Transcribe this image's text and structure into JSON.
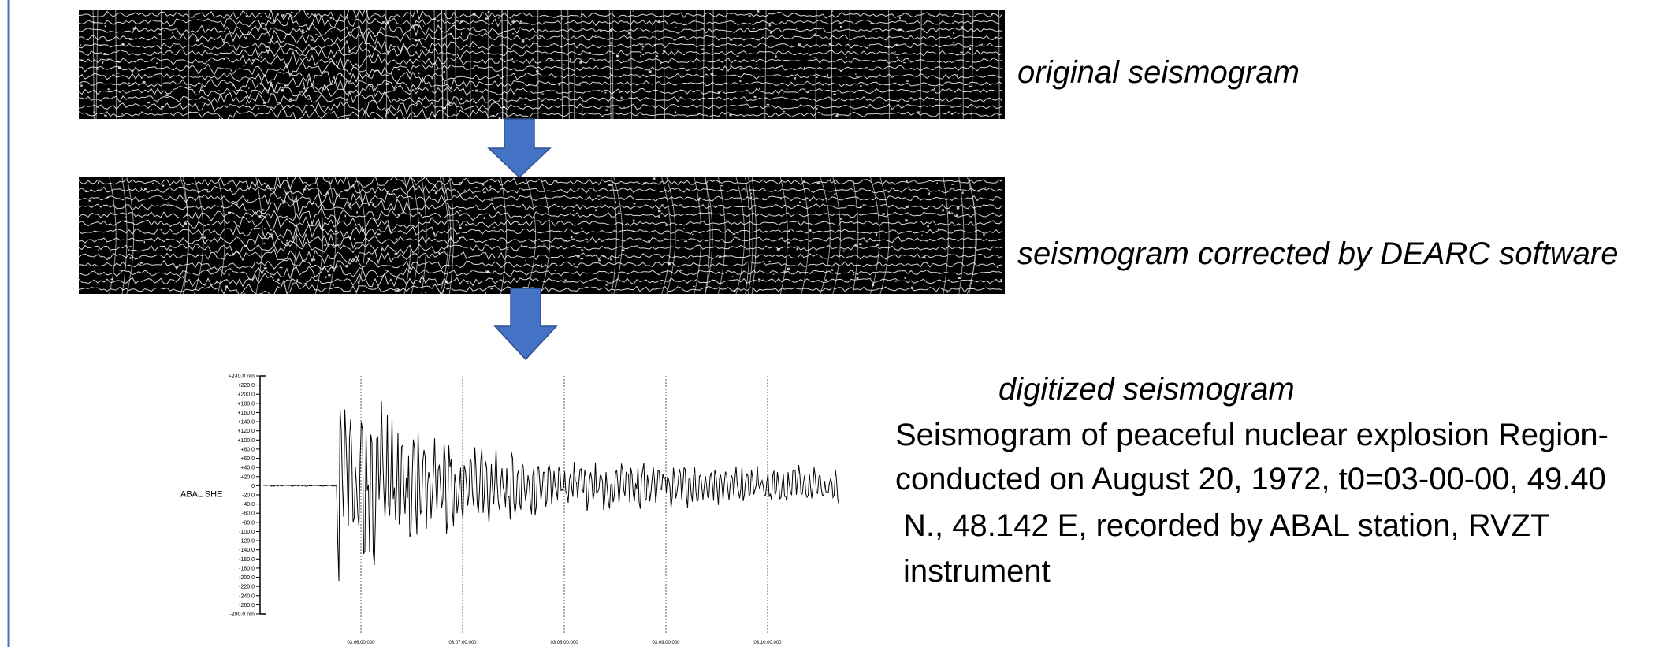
{
  "labels": {
    "original": "original seismogram",
    "corrected": "seismogram corrected by DEARC software",
    "digitized": "digitized seismogram"
  },
  "description": [
    "Seismogram of peaceful nuclear explosion Region-",
    "conducted on August 20, 1972, t0=03-00-00, 49.40",
    "N., 48.142 E, recorded by ABAL station, RVZT",
    "instrument"
  ],
  "plot": {
    "channel": "ABAL SHE",
    "yticks": [
      "+240.0 nm",
      "+220.0",
      "+200.0",
      "+180.0",
      "+160.0",
      "+140.0",
      "+120.0",
      "+100.0",
      "+80.0",
      "+60.0",
      "+40.0",
      "+20.0",
      "0",
      "-20.0",
      "-40.0",
      "-60.0",
      "-80.0",
      "-100.0",
      "-120.0",
      "-140.0",
      "-160.0",
      "-180.0",
      "-200.0",
      "-220.0",
      "-240.0",
      "-260.0",
      "-280.0 nm"
    ],
    "xticks": [
      "03:06:00.000",
      "03:07:00.000",
      "03:08:00.000",
      "03:09:00.000",
      "03:10:00.000"
    ]
  }
}
